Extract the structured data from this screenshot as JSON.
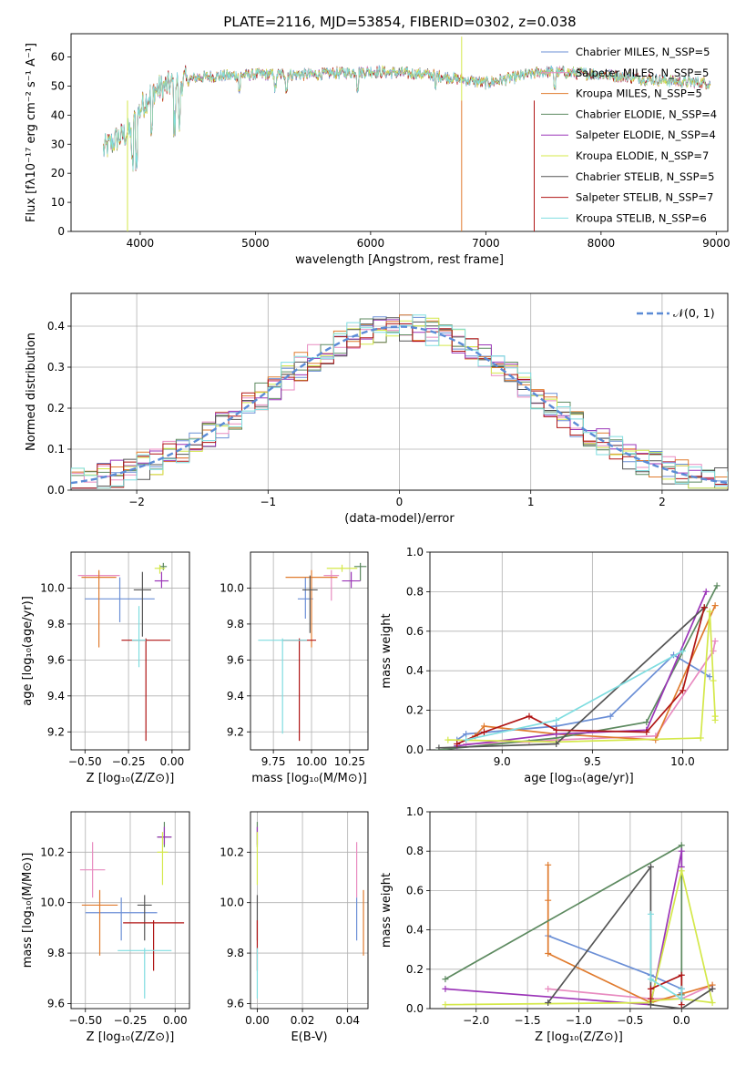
{
  "figure": {
    "title": "PLATE=2116, MJD=53854, FIBERID=0302, z=0.038"
  },
  "colors": [
    "#6b8fd6",
    "#e88bc0",
    "#e07b2e",
    "#5d8a60",
    "#9b35b8",
    "#d4e84a",
    "#555555",
    "#b01515",
    "#7fdde0"
  ],
  "legend": [
    "Chabrier MILES, N_SSP=5",
    "Salpeter MILES, N_SSP=5",
    "Kroupa MILES, N_SSP=5",
    "Chabrier ELODIE, N_SSP=4",
    "Salpeter ELODIE, N_SSP=4",
    "Kroupa ELODIE, N_SSP=7",
    "Chabrier STELIB, N_SSP=5",
    "Salpeter STELIB, N_SSP=7",
    "Kroupa STELIB, N_SSP=6"
  ],
  "chart_data": [
    {
      "panel": "spectrum",
      "type": "line",
      "xlabel": "wavelength [Angstrom, rest frame]",
      "ylabel": "Flux [fλ10⁻¹⁷ erg cm⁻² s⁻¹ A⁻¹]",
      "xlim": [
        3400,
        9100
      ],
      "ylim": [
        0,
        68
      ],
      "xticks": [
        "4000",
        "5000",
        "6000",
        "7000",
        "8000",
        "9000"
      ],
      "yticks": [
        "0",
        "10",
        "20",
        "30",
        "40",
        "50",
        "60"
      ],
      "continuum_x": [
        3680,
        3800,
        3900,
        4000,
        4100,
        4300,
        4500,
        5000,
        5500,
        6000,
        6500,
        7000,
        7500,
        8000,
        8500,
        8950
      ],
      "continuum_y": [
        28,
        32,
        34,
        42,
        48,
        51,
        53,
        54,
        54,
        55,
        54,
        51,
        55,
        54,
        52,
        51
      ]
    },
    {
      "panel": "residuals",
      "type": "line",
      "xlabel": "(data-model)/error",
      "ylabel": "Normed distribution",
      "xlim": [
        -2.5,
        2.5
      ],
      "ylim": [
        0,
        0.48
      ],
      "xticks": [
        "−2",
        "−1",
        "0",
        "1",
        "2"
      ],
      "yticks": [
        "0.0",
        "0.1",
        "0.2",
        "0.3",
        "0.4"
      ],
      "gaussian_label": "𝒩(0, 1)",
      "bin_width": 0.1
    },
    {
      "panel": "Z-age",
      "type": "scatter",
      "xlabel": "Z [log₁₀(Z/Z⊙)]",
      "ylabel": "age  [log₁₀(age/yr)]",
      "xlim": [
        -0.58,
        0.1
      ],
      "ylim": [
        9.1,
        10.2
      ],
      "xticks": [
        "−0.50",
        "−0.25",
        "0.00"
      ],
      "yticks": [
        "9.2",
        "9.4",
        "9.6",
        "9.8",
        "10.0"
      ],
      "points": [
        {
          "x": -0.3,
          "y": 9.94,
          "xerr": 0.2,
          "ylo": 9.81,
          "yhi": 10.06
        },
        {
          "x": -0.42,
          "y": 10.07,
          "xerr": 0.12,
          "ylo": 10.05,
          "yhi": 10.09
        },
        {
          "x": -0.42,
          "y": 10.06,
          "xerr": 0.1,
          "ylo": 9.67,
          "yhi": 10.1
        },
        {
          "x": -0.05,
          "y": 10.12,
          "xerr": 0.02,
          "ylo": 10.1,
          "yhi": 10.14
        },
        {
          "x": -0.06,
          "y": 10.04,
          "xerr": 0.04,
          "ylo": 10.0,
          "yhi": 10.09
        },
        {
          "x": -0.07,
          "y": 10.11,
          "xerr": 0.03,
          "ylo": 10.08,
          "yhi": 10.13
        },
        {
          "x": -0.17,
          "y": 9.99,
          "xerr": 0.05,
          "ylo": 9.73,
          "yhi": 10.09
        },
        {
          "x": -0.15,
          "y": 9.71,
          "xerr": 0.14,
          "ylo": 9.15,
          "yhi": 9.72
        },
        {
          "x": -0.19,
          "y": 9.71,
          "xerr": 0.04,
          "ylo": 9.56,
          "yhi": 9.9
        }
      ]
    },
    {
      "panel": "mass-age",
      "type": "scatter",
      "xlabel": "mass [log₁₀(M/M⊙)]",
      "ylabel": "",
      "xlim": [
        9.6,
        10.37
      ],
      "ylim": [
        9.1,
        10.2
      ],
      "xticks": [
        "9.75",
        "10.00",
        "10.25"
      ],
      "yticks": [
        "9.2",
        "9.4",
        "9.6",
        "9.8",
        "10.0"
      ],
      "points": [
        {
          "x": 9.96,
          "y": 9.94,
          "xerr": 0.05,
          "ylo": 9.83,
          "yhi": 10.06
        },
        {
          "x": 10.13,
          "y": 10.07,
          "xerr": 0.05,
          "ylo": 9.93,
          "yhi": 10.1
        },
        {
          "x": 10.0,
          "y": 10.06,
          "xerr": 0.17,
          "ylo": 9.67,
          "yhi": 10.1
        },
        {
          "x": 10.32,
          "y": 10.12,
          "xerr": 0.04,
          "ylo": 10.04,
          "yhi": 10.14
        },
        {
          "x": 10.26,
          "y": 10.04,
          "xerr": 0.06,
          "ylo": 10.0,
          "yhi": 10.09
        },
        {
          "x": 10.2,
          "y": 10.11,
          "xerr": 0.1,
          "ylo": 10.09,
          "yhi": 10.13
        },
        {
          "x": 9.99,
          "y": 9.99,
          "xerr": 0.05,
          "ylo": 9.75,
          "yhi": 10.07
        },
        {
          "x": 9.92,
          "y": 9.71,
          "xerr": 0.11,
          "ylo": 9.15,
          "yhi": 9.72
        },
        {
          "x": 9.81,
          "y": 9.71,
          "xerr": 0.16,
          "ylo": 9.19,
          "yhi": 9.72
        }
      ]
    },
    {
      "panel": "age-weight",
      "type": "line",
      "xlabel": "age  [log₁₀(age/yr)]",
      "ylabel": "mass weight",
      "xlim": [
        8.6,
        10.25
      ],
      "ylim": [
        0,
        1.0
      ],
      "xticks": [
        "9.0",
        "9.5",
        "10.0"
      ],
      "yticks": [
        "0.0",
        "0.2",
        "0.4",
        "0.6",
        "0.8",
        "1.0"
      ],
      "series": [
        {
          "x": [
            8.75,
            8.8,
            9.3,
            9.6,
            9.95,
            10.15
          ],
          "y": [
            0.05,
            0.08,
            0.12,
            0.17,
            0.48,
            0.37
          ]
        },
        {
          "x": [
            8.8,
            9.15,
            9.3,
            9.85,
            10.17,
            10.18
          ],
          "y": [
            0.03,
            0.04,
            0.05,
            0.07,
            0.5,
            0.55
          ]
        },
        {
          "x": [
            8.85,
            8.9,
            9.3,
            9.85,
            10.18
          ],
          "y": [
            0.07,
            0.12,
            0.08,
            0.05,
            0.73
          ]
        },
        {
          "x": [
            8.65,
            9.3,
            9.8,
            10.19
          ],
          "y": [
            0.0,
            0.06,
            0.14,
            0.83
          ]
        },
        {
          "x": [
            8.75,
            9.3,
            9.8,
            10.13
          ],
          "y": [
            0.02,
            0.08,
            0.1,
            0.8
          ]
        },
        {
          "x": [
            8.7,
            9.3,
            10.1,
            10.15,
            10.17,
            10.18,
            10.18
          ],
          "y": [
            0.05,
            0.04,
            0.06,
            0.7,
            0.35,
            0.17,
            0.15
          ]
        },
        {
          "x": [
            8.65,
            9.3,
            10.12
          ],
          "y": [
            0.01,
            0.03,
            0.72
          ]
        },
        {
          "x": [
            8.75,
            8.9,
            9.15,
            9.3,
            9.8,
            10.0,
            10.12
          ],
          "y": [
            0.03,
            0.09,
            0.17,
            0.1,
            0.09,
            0.3,
            0.72
          ]
        },
        {
          "x": [
            8.8,
            9.3,
            10.0
          ],
          "y": [
            0.05,
            0.15,
            0.5
          ]
        }
      ]
    },
    {
      "panel": "Z-mass",
      "type": "scatter",
      "xlabel": "Z [log₁₀(Z/Z⊙)]",
      "ylabel": "mass [log₁₀(M/M⊙)]",
      "xlim": [
        -0.58,
        0.08
      ],
      "ylim": [
        9.58,
        10.36
      ],
      "xticks": [
        "−0.50",
        "−0.25",
        "0.00"
      ],
      "yticks": [
        "9.6",
        "9.8",
        "10.0",
        "10.2"
      ],
      "points": [
        {
          "x": -0.3,
          "y": 9.96,
          "xerr": 0.2,
          "ylo": 9.85,
          "yhi": 10.02
        },
        {
          "x": -0.46,
          "y": 10.13,
          "xerr": 0.07,
          "ylo": 10.02,
          "yhi": 10.24
        },
        {
          "x": -0.42,
          "y": 9.99,
          "xerr": 0.1,
          "ylo": 9.79,
          "yhi": 10.05
        },
        {
          "x": -0.06,
          "y": 10.26,
          "xerr": 0.04,
          "ylo": 10.22,
          "yhi": 10.32
        },
        {
          "x": -0.06,
          "y": 10.26,
          "xerr": 0.04,
          "ylo": 10.23,
          "yhi": 10.3
        },
        {
          "x": -0.07,
          "y": 10.2,
          "xerr": 0.03,
          "ylo": 10.07,
          "yhi": 10.28
        },
        {
          "x": -0.17,
          "y": 9.99,
          "xerr": 0.04,
          "ylo": 9.85,
          "yhi": 10.03
        },
        {
          "x": -0.12,
          "y": 9.92,
          "xerr": 0.17,
          "ylo": 9.73,
          "yhi": 9.93
        },
        {
          "x": -0.17,
          "y": 9.81,
          "xerr": 0.15,
          "ylo": 9.62,
          "yhi": 9.82
        }
      ]
    },
    {
      "panel": "EBV-mass",
      "type": "scatter",
      "xlabel": "E(B-V)",
      "ylabel": "",
      "xlim": [
        -0.003,
        0.049
      ],
      "ylim": [
        9.58,
        10.36
      ],
      "xticks": [
        "0.00",
        "0.02",
        "0.04"
      ],
      "yticks": [
        "9.6",
        "9.8",
        "10.0",
        "10.2"
      ],
      "points": [
        {
          "x": 0.044,
          "y": 9.96,
          "ylo": 9.85,
          "yhi": 10.02
        },
        {
          "x": 0.044,
          "y": 10.13,
          "ylo": 10.02,
          "yhi": 10.24
        },
        {
          "x": 0.047,
          "y": 9.99,
          "ylo": 9.79,
          "yhi": 10.05
        },
        {
          "x": 0.0,
          "y": 10.26,
          "ylo": 10.22,
          "yhi": 10.32
        },
        {
          "x": 0.0,
          "y": 10.26,
          "ylo": 10.23,
          "yhi": 10.3
        },
        {
          "x": 0.0,
          "y": 10.2,
          "ylo": 10.07,
          "yhi": 10.28
        },
        {
          "x": 0.0,
          "y": 9.99,
          "ylo": 9.85,
          "yhi": 10.03
        },
        {
          "x": 0.0,
          "y": 9.92,
          "ylo": 9.73,
          "yhi": 9.93
        },
        {
          "x": 0.0,
          "y": 9.81,
          "ylo": 9.62,
          "yhi": 9.82
        }
      ]
    },
    {
      "panel": "Z-weight",
      "type": "line",
      "xlabel": "Z [log₁₀(Z/Z⊙)]",
      "ylabel": "mass weight",
      "xlim": [
        -2.45,
        0.45
      ],
      "ylim": [
        0,
        1.0
      ],
      "xticks": [
        "−2.0",
        "−1.5",
        "−1.0",
        "−0.5",
        "0.0"
      ],
      "yticks": [
        "0.0",
        "0.2",
        "0.4",
        "0.6",
        "0.8",
        "1.0"
      ],
      "series": [
        {
          "x": [
            -1.3,
            -0.3,
            0.0,
            0.0,
            0.0
          ],
          "y": [
            0.37,
            0.17,
            0.1,
            0.08,
            0.05
          ]
        },
        {
          "x": [
            -1.3,
            -0.3,
            0.0,
            0.3,
            0.3
          ],
          "y": [
            0.1,
            0.05,
            0.05,
            0.12,
            0.1
          ]
        },
        {
          "x": [
            -1.3,
            -1.3,
            -1.3,
            -0.3,
            0.3
          ],
          "y": [
            0.73,
            0.55,
            0.28,
            0.03,
            0.12
          ]
        },
        {
          "x": [
            -2.3,
            0.0,
            0.0
          ],
          "y": [
            0.15,
            0.83,
            0.07
          ]
        },
        {
          "x": [
            -2.3,
            -0.3,
            0.0,
            0.0
          ],
          "y": [
            0.1,
            0.02,
            0.8,
            0.72
          ]
        },
        {
          "x": [
            -2.3,
            -0.3,
            0.0,
            0.3,
            0.0,
            -0.3
          ],
          "y": [
            0.02,
            0.03,
            0.7,
            0.03,
            0.05,
            0.04
          ]
        },
        {
          "x": [
            -1.3,
            -0.3,
            -0.3,
            0.0,
            0.3
          ],
          "y": [
            0.03,
            0.72,
            0.02,
            0.0,
            0.1
          ]
        },
        {
          "x": [
            -0.3,
            -0.3,
            0.0,
            0.0
          ],
          "y": [
            0.05,
            0.1,
            0.17,
            0.02
          ]
        },
        {
          "x": [
            -0.3,
            -0.3,
            0.0,
            0.0
          ],
          "y": [
            0.48,
            0.15,
            0.05,
            0.1
          ]
        }
      ]
    }
  ]
}
